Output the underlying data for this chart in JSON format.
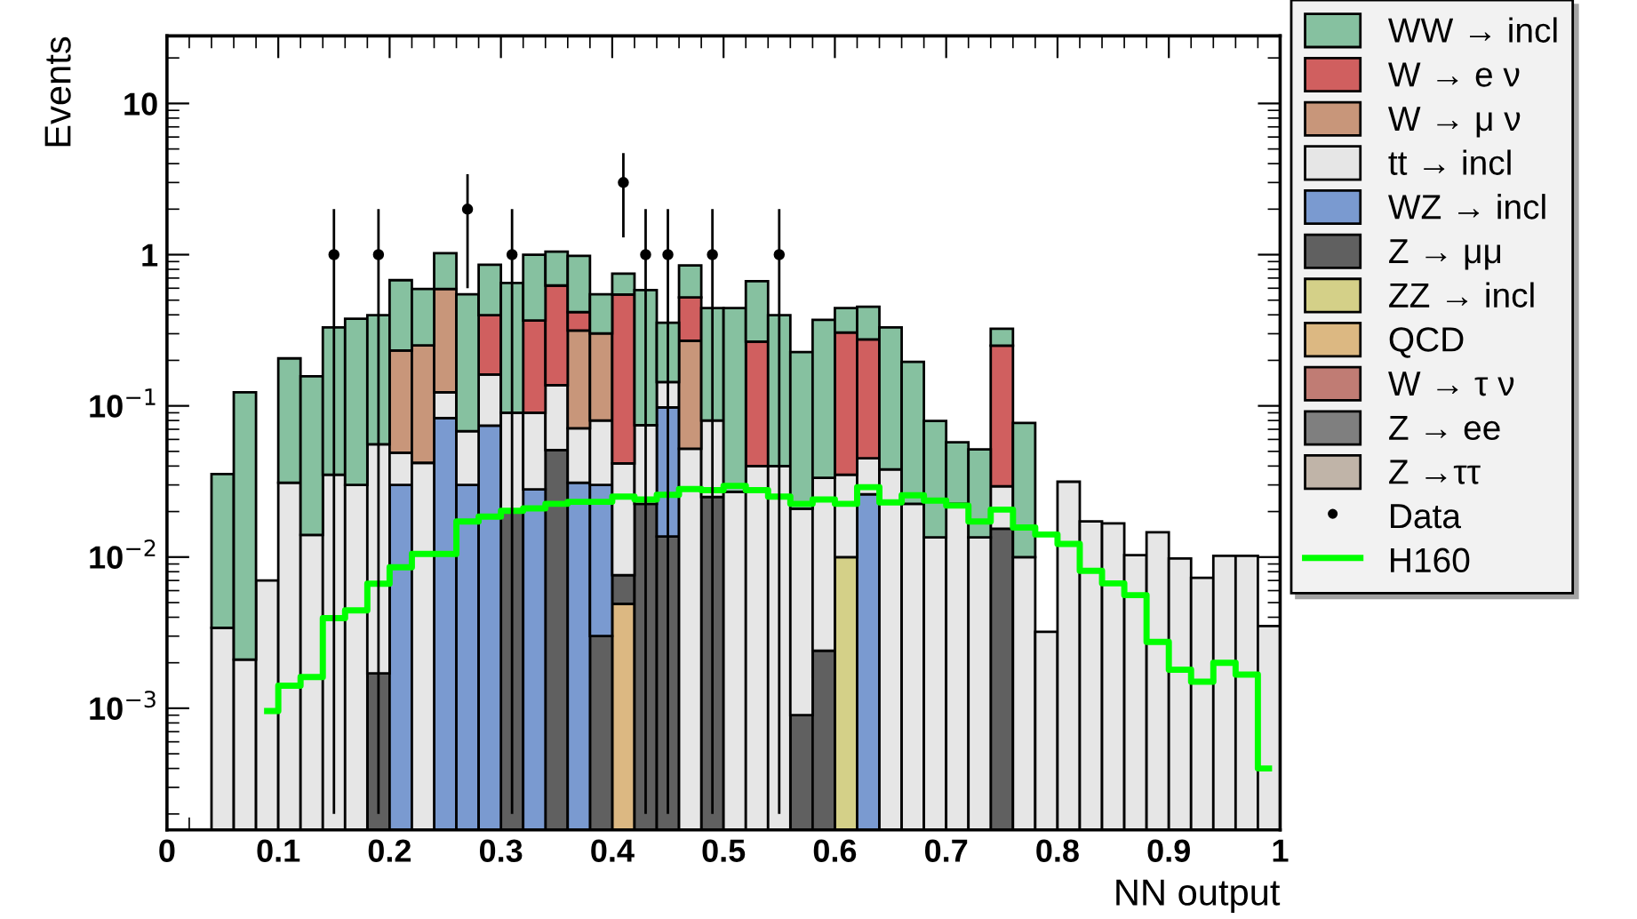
{
  "chart_data": {
    "type": "bar",
    "xlabel": "NN output",
    "ylabel": "Events",
    "stacked": true,
    "log": true,
    "legend": "right",
    "x": [
      0.05,
      0.07,
      0.09,
      0.11,
      0.13,
      0.15,
      0.17,
      0.19,
      0.21,
      0.23,
      0.25,
      0.27,
      0.29,
      0.31,
      0.33,
      0.35,
      0.37,
      0.39,
      0.41,
      0.43,
      0.45,
      0.47,
      0.49,
      0.51,
      0.53,
      0.55,
      0.57,
      0.59,
      0.61,
      0.63,
      0.65,
      0.67,
      0.69,
      0.71,
      0.73,
      0.75,
      0.77,
      0.79,
      0.81,
      0.83,
      0.85,
      0.87,
      0.89,
      0.91,
      0.93,
      0.95,
      0.97,
      0.99
    ],
    "xlim": [
      0,
      1
    ],
    "xticks": [
      0,
      0.1,
      0.2,
      0.3,
      0.4,
      0.5,
      0.6,
      0.7,
      0.8,
      0.9,
      1
    ],
    "ylim": [
      0.000157,
      28
    ],
    "yticks": [
      {
        "value": 0.001,
        "label": "10$^{−3}$"
      },
      {
        "value": 0.01,
        "label": "10$^{−2}$"
      },
      {
        "value": 0.1,
        "label": "10$^{−1}$"
      },
      1,
      10
    ],
    "series": [
      {
        "name": "Z →ττ",
        "color": "#c0b4a8",
        "values": [
          null,
          null,
          null,
          null,
          null,
          null,
          null,
          null,
          null,
          null,
          null,
          null,
          null,
          null,
          null,
          null,
          null,
          null,
          null,
          null,
          null,
          null,
          null,
          null,
          null,
          null,
          null,
          null,
          null,
          null,
          null,
          null,
          null,
          null,
          null,
          null,
          null,
          null,
          null,
          null,
          null,
          null,
          null,
          null,
          null,
          null,
          null,
          null
        ]
      },
      {
        "name": "Z → ee",
        "color": "#7f7f7f",
        "values": [
          null,
          null,
          null,
          null,
          null,
          null,
          null,
          null,
          null,
          null,
          null,
          null,
          null,
          null,
          null,
          null,
          null,
          null,
          null,
          null,
          null,
          null,
          null,
          null,
          null,
          null,
          null,
          null,
          null,
          null,
          null,
          null,
          null,
          null,
          null,
          null,
          null,
          null,
          null,
          null,
          null,
          null,
          null,
          null,
          null,
          null,
          null,
          null
        ]
      },
      {
        "name": "W → τ ν",
        "color": "#c07c74",
        "values": [
          null,
          null,
          null,
          null,
          null,
          null,
          null,
          null,
          null,
          null,
          null,
          null,
          null,
          null,
          null,
          null,
          null,
          null,
          null,
          null,
          null,
          null,
          null,
          null,
          null,
          null,
          null,
          null,
          null,
          null,
          null,
          null,
          null,
          null,
          null,
          null,
          null,
          null,
          null,
          null,
          null,
          null,
          null,
          null,
          null,
          null,
          null,
          null
        ]
      },
      {
        "name": "QCD",
        "color": "#dcb882",
        "values": [
          null,
          null,
          null,
          null,
          null,
          null,
          null,
          null,
          null,
          null,
          null,
          null,
          null,
          null,
          null,
          null,
          null,
          null,
          0.0049,
          null,
          null,
          null,
          null,
          null,
          null,
          null,
          null,
          null,
          null,
          null,
          null,
          null,
          null,
          null,
          null,
          null,
          null,
          null,
          null,
          null,
          null,
          null,
          null,
          null,
          null,
          null,
          null,
          null
        ]
      },
      {
        "name": "ZZ → incl",
        "color": "#d4d088",
        "values": [
          null,
          null,
          null,
          null,
          null,
          null,
          null,
          null,
          null,
          null,
          null,
          null,
          null,
          null,
          null,
          null,
          null,
          null,
          null,
          null,
          null,
          null,
          null,
          null,
          null,
          null,
          null,
          null,
          0.01,
          null,
          null,
          null,
          null,
          null,
          null,
          null,
          null,
          null,
          null,
          null,
          null,
          null,
          null,
          null,
          null,
          null,
          null,
          null
        ]
      },
      {
        "name": "Z → μμ",
        "color": "#606060",
        "values": [
          null,
          null,
          null,
          null,
          null,
          null,
          null,
          0.0017,
          null,
          null,
          null,
          null,
          null,
          0.02,
          null,
          0.051,
          null,
          0.003,
          0.0027,
          0.0225,
          0.0137,
          null,
          0.025,
          null,
          null,
          null,
          0.0009,
          0.0024,
          null,
          null,
          null,
          null,
          null,
          null,
          null,
          0.0154,
          null,
          null,
          null,
          null,
          null,
          null,
          null,
          null,
          null,
          null,
          null,
          null
        ]
      },
      {
        "name": "WZ → incl",
        "color": "#7a9ad0",
        "values": [
          null,
          null,
          null,
          null,
          null,
          null,
          null,
          null,
          0.03,
          null,
          0.083,
          0.03,
          0.074,
          null,
          0.028,
          null,
          0.031,
          0.027,
          null,
          null,
          0.084,
          null,
          null,
          null,
          null,
          null,
          null,
          null,
          null,
          0.026,
          null,
          null,
          null,
          null,
          null,
          null,
          null,
          null,
          null,
          null,
          null,
          null,
          null,
          null,
          null,
          null,
          null,
          null
        ]
      },
      {
        "name": "tt → incl",
        "color": "#e6e6e6",
        "values": [
          0.0034,
          0.0021,
          0.007,
          0.031,
          0.014,
          0.035,
          0.03,
          0.054,
          0.019,
          0.042,
          0.04,
          0.038,
          0.087,
          0.07,
          0.062,
          0.086,
          0.04,
          0.05,
          0.034,
          0.052,
          0.046,
          0.052,
          0.055,
          0.027,
          0.04,
          0.04,
          0.02,
          0.031,
          0.025,
          0.019,
          0.038,
          0.0225,
          0.0135,
          0.0225,
          0.0135,
          0.014,
          0.01,
          0.0032,
          0.0315,
          0.0172,
          0.0167,
          0.0103,
          0.0146,
          0.0098,
          0.0073,
          0.0102,
          0.0102,
          0.0035
        ]
      },
      {
        "name": "W → μ ν",
        "color": "#c8967a",
        "values": [
          null,
          null,
          null,
          null,
          null,
          null,
          null,
          null,
          0.183,
          0.209,
          0.47,
          null,
          null,
          null,
          null,
          null,
          0.244,
          0.221,
          null,
          null,
          null,
          0.218,
          null,
          null,
          null,
          null,
          null,
          null,
          null,
          null,
          null,
          null,
          null,
          null,
          null,
          null,
          null,
          null,
          null,
          null,
          null,
          null,
          null,
          null,
          null,
          null,
          null,
          null
        ]
      },
      {
        "name": "W → e ν",
        "color": "#d05f5f",
        "values": [
          null,
          null,
          null,
          null,
          null,
          null,
          null,
          null,
          null,
          null,
          null,
          null,
          0.237,
          null,
          0.277,
          0.488,
          0.102,
          null,
          0.504,
          null,
          null,
          0.252,
          null,
          null,
          0.226,
          null,
          null,
          null,
          0.271,
          0.23,
          null,
          null,
          null,
          null,
          null,
          0.221,
          null,
          null,
          null,
          null,
          null,
          null,
          null,
          null,
          null,
          null,
          null,
          null
        ]
      },
      {
        "name": "WW → incl",
        "color": "#86c1a0",
        "values": [
          0.032,
          0.121,
          null,
          0.175,
          0.143,
          0.295,
          0.347,
          0.342,
          0.446,
          0.342,
          0.43,
          0.478,
          0.46,
          0.559,
          0.633,
          0.422,
          0.565,
          0.245,
          0.203,
          0.508,
          0.211,
          0.328,
          0.364,
          0.417,
          0.402,
          0.358,
          0.206,
          0.337,
          0.138,
          0.177,
          0.292,
          0.173,
          0.066,
          0.035,
          0.038,
          0.073,
          0.067,
          null,
          null,
          null,
          null,
          null,
          null,
          null,
          null,
          null,
          null,
          null
        ]
      },
      {
        "name": "Data",
        "type": "scatter",
        "marker": "circle",
        "color": "#000000",
        "x": [
          0.15,
          0.19,
          0.27,
          0.31,
          0.41,
          0.43,
          0.45,
          0.49,
          0.55
        ],
        "values": [
          1,
          1,
          2,
          1,
          3,
          1,
          1,
          1,
          1
        ],
        "errors": [
          [
            0.9998,
            1
          ],
          [
            0.9998,
            1
          ],
          1.4,
          [
            0.9998,
            1
          ],
          1.7,
          [
            0.9998,
            1
          ],
          [
            0.9998,
            1
          ],
          [
            0.9998,
            1
          ],
          [
            0.9998,
            1
          ]
        ]
      },
      {
        "name": "H160",
        "type": "step",
        "color": "#00ff00",
        "values": [
          null,
          null,
          0.00096,
          0.00141,
          0.00161,
          0.00394,
          0.00444,
          0.00667,
          0.00857,
          0.0105,
          0.0105,
          0.0172,
          0.0185,
          0.0202,
          0.021,
          0.0225,
          0.0232,
          0.0232,
          0.0251,
          0.024,
          0.0258,
          0.0282,
          0.0277,
          0.0296,
          0.0277,
          0.0251,
          0.0225,
          0.024,
          0.0225,
          0.029,
          0.023,
          0.0256,
          0.0236,
          0.0219,
          0.0172,
          0.0206,
          0.0157,
          0.0141,
          0.0122,
          0.0081,
          0.0067,
          0.0056,
          0.00275,
          0.0018,
          0.0015,
          0.002,
          0.00167,
          0.0004
        ]
      }
    ]
  }
}
